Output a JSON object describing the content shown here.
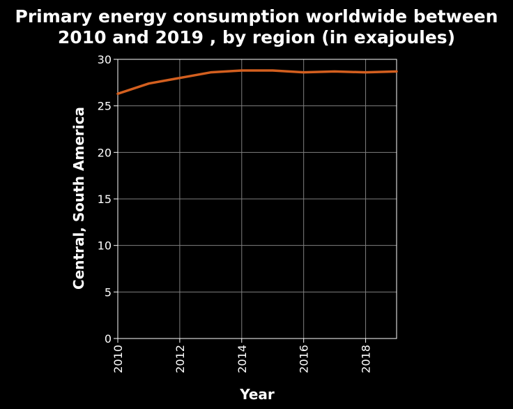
{
  "chart_data": {
    "type": "line",
    "title_lines": [
      "Primary energy consumption worldwide between",
      "2010 and 2019 , by region (in exajoules)"
    ],
    "xlabel": "Year",
    "ylabel": "Central, South America",
    "x": [
      2010,
      2011,
      2012,
      2013,
      2014,
      2015,
      2016,
      2017,
      2018,
      2019
    ],
    "series": [
      {
        "values": [
          26.3,
          27.4,
          28.0,
          28.6,
          28.8,
          28.8,
          28.6,
          28.7,
          28.6,
          28.7
        ]
      }
    ],
    "xlim": [
      2010,
      2019
    ],
    "ylim": [
      0,
      30
    ],
    "xticks": [
      2010,
      2012,
      2014,
      2016,
      2018
    ],
    "yticks": [
      0,
      5,
      10,
      15,
      20,
      25,
      30
    ],
    "grid": true,
    "background": "#000000",
    "plot_background": "#000000",
    "grid_color": "#808080",
    "text_color": "#ffffff",
    "line_color": "#d35f1f"
  }
}
